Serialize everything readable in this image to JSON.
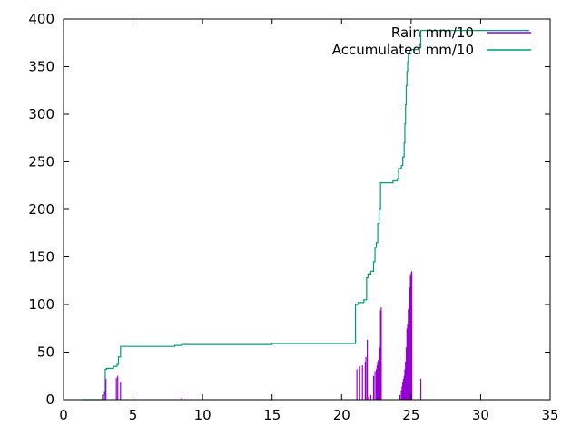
{
  "chart_data": {
    "type": "line",
    "xlim": [
      0,
      35
    ],
    "ylim": [
      0,
      400
    ],
    "xticks": [
      0,
      5,
      10,
      15,
      20,
      25,
      30,
      35
    ],
    "yticks": [
      0,
      50,
      100,
      150,
      200,
      250,
      300,
      350,
      400
    ],
    "grid": false,
    "legend_position": "top-right",
    "series": [
      {
        "name": "Rain mm/10",
        "style": "impulses",
        "color": "#9400d3",
        "x": [
          2.8,
          2.95,
          3.05,
          3.8,
          3.9,
          4.1,
          8.5,
          21.1,
          21.3,
          21.5,
          21.7,
          21.75,
          21.85,
          21.95,
          22.1,
          22.3,
          22.4,
          22.5,
          22.55,
          22.6,
          22.65,
          22.7,
          22.75,
          22.8,
          22.85,
          24.2,
          24.3,
          24.35,
          24.4,
          24.45,
          24.5,
          24.55,
          24.6,
          24.65,
          24.7,
          24.75,
          24.8,
          24.85,
          24.9,
          24.95,
          25.0,
          25.05,
          25.7
        ],
        "y": [
          5,
          8,
          22,
          23,
          25,
          18,
          2,
          32,
          35,
          36,
          40,
          45,
          63,
          3,
          5,
          25,
          30,
          32,
          36,
          40,
          42,
          50,
          55,
          94,
          97,
          5,
          10,
          14,
          18,
          22,
          25,
          32,
          40,
          55,
          75,
          80,
          95,
          100,
          118,
          130,
          133,
          135,
          22
        ]
      },
      {
        "name": "Accumulated mm/10",
        "style": "steps",
        "color": "#009e73",
        "x": [
          1.3,
          2.7,
          2.85,
          3.0,
          3.1,
          3.6,
          3.85,
          3.95,
          4.1,
          8.0,
          8.5,
          15.0,
          20.9,
          21.0,
          21.2,
          21.6,
          21.8,
          21.9,
          22.1,
          22.3,
          22.4,
          22.5,
          22.6,
          22.7,
          22.8,
          23.7,
          24.0,
          24.1,
          24.3,
          24.4,
          24.5,
          24.55,
          24.6,
          24.65,
          24.7,
          24.75,
          24.8,
          24.85,
          24.9,
          25.0,
          25.5,
          25.7,
          33.5
        ],
        "y": [
          0,
          0,
          5,
          32,
          33,
          35,
          37,
          45,
          56,
          57,
          58,
          59,
          59,
          100,
          102,
          105,
          128,
          132,
          135,
          145,
          160,
          165,
          185,
          200,
          228,
          230,
          232,
          243,
          246,
          255,
          270,
          290,
          310,
          330,
          345,
          355,
          362,
          365,
          367,
          368,
          370,
          388,
          388
        ]
      }
    ]
  }
}
